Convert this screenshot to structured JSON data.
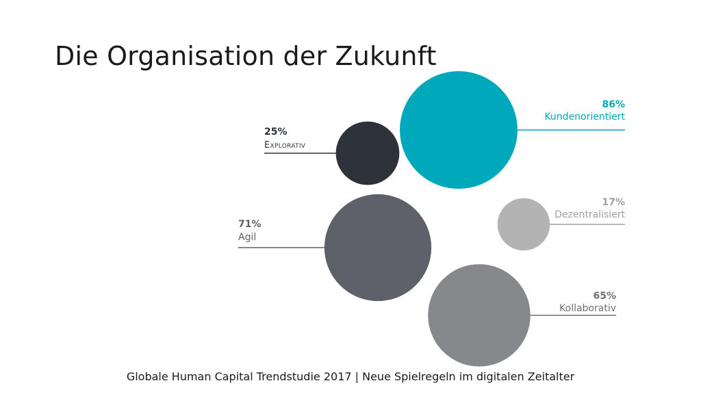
{
  "slide": {
    "title": "Die Organisation der Zukunft",
    "footer": "Globale Human Capital Trendstudie 2017 | Neue Spielregeln im digitalen Zeitalter"
  },
  "chart_data": {
    "type": "bubble",
    "title": "Die Organisation der Zukunft",
    "unit": "%",
    "items": [
      {
        "key": "kunden",
        "label": "Kundenorientiert",
        "value_label": "86%",
        "value": 86,
        "color": "#00a8bc",
        "label_color": "#00a8bc",
        "side": "right"
      },
      {
        "key": "explor",
        "label": "Explorativ",
        "value_label": "25%",
        "value": 25,
        "color": "#2e323b",
        "label_color": "#2e323b",
        "side": "left",
        "small_caps": true
      },
      {
        "key": "dezent",
        "label": "Dezentralisiert",
        "value_label": "17%",
        "value": 17,
        "color": "#b3b3b3",
        "label_color": "#a0a0a0",
        "side": "right"
      },
      {
        "key": "agil",
        "label": "Agil",
        "value_label": "71%",
        "value": 71,
        "color": "#5e6169",
        "label_color": "#5e6169",
        "side": "left"
      },
      {
        "key": "kollab",
        "label": "Kollaborativ",
        "value_label": "65%",
        "value": 65,
        "color": "#86888c",
        "label_color": "#6f7175",
        "side": "right"
      }
    ]
  }
}
